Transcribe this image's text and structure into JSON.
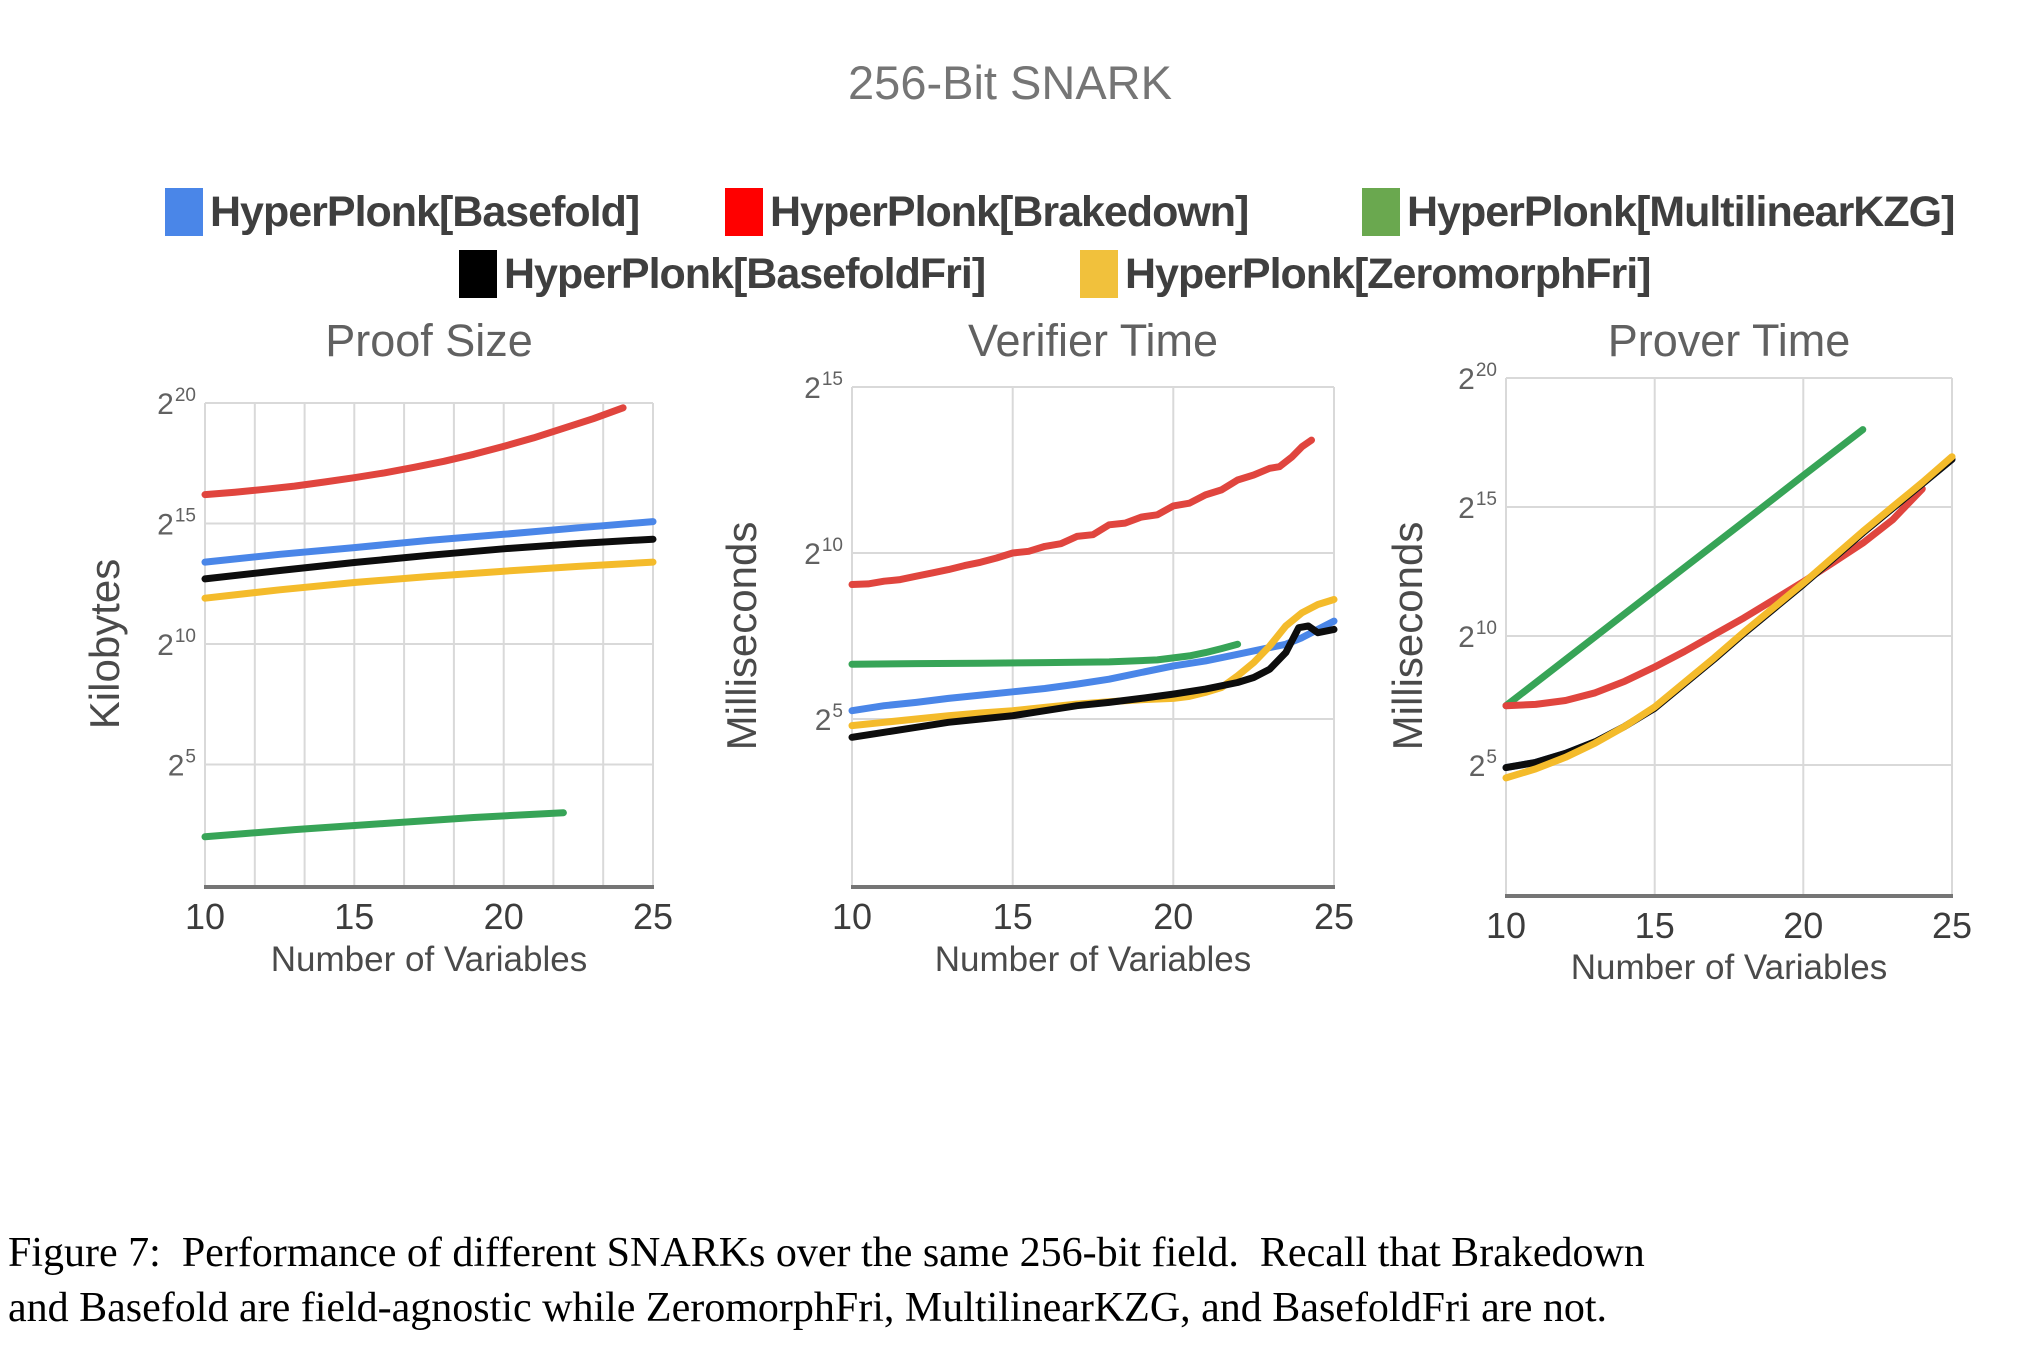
{
  "figure_title": "256-Bit SNARK",
  "legend": {
    "items": [
      {
        "label": "HyperPlonk[Basefold]",
        "swatch_color": "#4a86e8"
      },
      {
        "label": "HyperPlonk[Brakedown]",
        "swatch_color": "#ff0000"
      },
      {
        "label": "HyperPlonk[MultilinearKZG]",
        "swatch_color": "#6aa84f"
      },
      {
        "label": "HyperPlonk[BasefoldFri]",
        "swatch_color": "#000000"
      },
      {
        "label": "HyperPlonk[ZeromorphFri]",
        "swatch_color": "#f1c13c"
      }
    ]
  },
  "chart_style": {
    "grid_color": "#d9d9d9",
    "axis_color": "#757575",
    "tick_color": "#616161",
    "xtick_color": "#3c3c3c"
  },
  "chart_data": [
    {
      "type": "line",
      "title": "Proof Size",
      "xlabel": "Number of Variables",
      "ylabel": "Kilobytes",
      "y_scale": "log2",
      "y_base": "2",
      "x_range": [
        10,
        25
      ],
      "x_ticks": [
        10,
        15,
        20,
        25
      ],
      "x_minor_divisions": 9,
      "y_range_log2": [
        0,
        20
      ],
      "y_ticks_log2": [
        5,
        10,
        15,
        20
      ],
      "series": [
        {
          "id": "basefold",
          "name": "HyperPlonk[Basefold]",
          "color": "#4a86e8",
          "points_log2": [
            [
              10,
              13.4
            ],
            [
              12.5,
              13.72
            ],
            [
              15,
              14.0
            ],
            [
              17.5,
              14.3
            ],
            [
              20,
              14.55
            ],
            [
              22.5,
              14.82
            ],
            [
              25,
              15.08
            ]
          ]
        },
        {
          "id": "brakedown",
          "name": "HyperPlonk[Brakedown]",
          "color": "#e0453e",
          "points_log2": [
            [
              10,
              16.2
            ],
            [
              11,
              16.3
            ],
            [
              12,
              16.42
            ],
            [
              13,
              16.55
            ],
            [
              14,
              16.72
            ],
            [
              15,
              16.9
            ],
            [
              16,
              17.1
            ],
            [
              17,
              17.33
            ],
            [
              18,
              17.58
            ],
            [
              19,
              17.87
            ],
            [
              20,
              18.2
            ],
            [
              21,
              18.55
            ],
            [
              22,
              18.95
            ],
            [
              23,
              19.35
            ],
            [
              24,
              19.8
            ]
          ]
        },
        {
          "id": "multilinear-kzg",
          "name": "HyperPlonk[MultilinearKZG]",
          "color": "#37a457",
          "points_log2": [
            [
              10,
              2.0
            ],
            [
              13,
              2.3
            ],
            [
              16,
              2.55
            ],
            [
              19,
              2.8
            ],
            [
              22,
              3.0
            ]
          ]
        },
        {
          "id": "basefold-fri",
          "name": "HyperPlonk[BasefoldFri]",
          "color": "#0d0d0d",
          "points_log2": [
            [
              10,
              12.7
            ],
            [
              12.5,
              13.05
            ],
            [
              15,
              13.38
            ],
            [
              17.5,
              13.68
            ],
            [
              20,
              13.95
            ],
            [
              22.5,
              14.17
            ],
            [
              25,
              14.35
            ]
          ]
        },
        {
          "id": "zeromorph-fri",
          "name": "HyperPlonk[ZeromorphFri]",
          "color": "#f4bb2b",
          "points_log2": [
            [
              10,
              11.9
            ],
            [
              12.5,
              12.25
            ],
            [
              15,
              12.55
            ],
            [
              17.5,
              12.8
            ],
            [
              20,
              13.02
            ],
            [
              22.5,
              13.22
            ],
            [
              25,
              13.4
            ]
          ]
        }
      ]
    },
    {
      "type": "line",
      "title": "Verifier Time",
      "xlabel": "Number of Variables",
      "ylabel": "Milliseconds",
      "y_scale": "log2",
      "y_base": "2",
      "x_range": [
        10,
        25
      ],
      "x_ticks": [
        10,
        15,
        20,
        25
      ],
      "x_minor_divisions": 0,
      "y_range_log2": [
        0,
        15
      ],
      "y_ticks_log2": [
        5,
        10,
        15
      ],
      "series": [
        {
          "id": "brakedown",
          "name": "HyperPlonk[Brakedown]",
          "color": "#e0453e",
          "points_log2": [
            [
              10,
              9.05
            ],
            [
              10.5,
              9.07
            ],
            [
              11,
              9.15
            ],
            [
              11.5,
              9.2
            ],
            [
              12,
              9.3
            ],
            [
              12.5,
              9.4
            ],
            [
              13,
              9.5
            ],
            [
              13.5,
              9.62
            ],
            [
              14,
              9.72
            ],
            [
              14.5,
              9.85
            ],
            [
              15,
              10.0
            ],
            [
              15.5,
              10.05
            ],
            [
              16,
              10.2
            ],
            [
              16.5,
              10.28
            ],
            [
              17,
              10.5
            ],
            [
              17.5,
              10.55
            ],
            [
              18,
              10.85
            ],
            [
              18.5,
              10.9
            ],
            [
              19,
              11.08
            ],
            [
              19.5,
              11.15
            ],
            [
              20,
              11.42
            ],
            [
              20.5,
              11.5
            ],
            [
              21,
              11.75
            ],
            [
              21.5,
              11.9
            ],
            [
              22,
              12.2
            ],
            [
              22.5,
              12.35
            ],
            [
              23,
              12.55
            ],
            [
              23.3,
              12.6
            ],
            [
              23.7,
              12.9
            ],
            [
              24,
              13.2
            ],
            [
              24.3,
              13.4
            ]
          ]
        },
        {
          "id": "multilinear-kzg",
          "name": "HyperPlonk[MultilinearKZG]",
          "color": "#37a457",
          "points_log2": [
            [
              10,
              6.65
            ],
            [
              12,
              6.67
            ],
            [
              14,
              6.68
            ],
            [
              16,
              6.7
            ],
            [
              18,
              6.72
            ],
            [
              19.5,
              6.78
            ],
            [
              20.5,
              6.9
            ],
            [
              21,
              7.0
            ],
            [
              21.5,
              7.12
            ],
            [
              22,
              7.25
            ]
          ]
        },
        {
          "id": "basefold",
          "name": "HyperPlonk[Basefold]",
          "color": "#4a86e8",
          "points_log2": [
            [
              10,
              5.25
            ],
            [
              11,
              5.4
            ],
            [
              12,
              5.5
            ],
            [
              13,
              5.62
            ],
            [
              14,
              5.72
            ],
            [
              15,
              5.82
            ],
            [
              16,
              5.92
            ],
            [
              17,
              6.05
            ],
            [
              18,
              6.2
            ],
            [
              19,
              6.4
            ],
            [
              20,
              6.6
            ],
            [
              21,
              6.75
            ],
            [
              22,
              6.95
            ],
            [
              23,
              7.15
            ],
            [
              23.5,
              7.25
            ],
            [
              24,
              7.45
            ],
            [
              24.5,
              7.7
            ],
            [
              25,
              7.95
            ]
          ]
        },
        {
          "id": "zeromorph-fri",
          "name": "HyperPlonk[ZeromorphFri]",
          "color": "#f4bb2b",
          "points_log2": [
            [
              10,
              4.8
            ],
            [
              11,
              4.9
            ],
            [
              12,
              5.0
            ],
            [
              13,
              5.1
            ],
            [
              14,
              5.18
            ],
            [
              15,
              5.25
            ],
            [
              16,
              5.35
            ],
            [
              17,
              5.45
            ],
            [
              18,
              5.52
            ],
            [
              19,
              5.58
            ],
            [
              20,
              5.62
            ],
            [
              20.5,
              5.68
            ],
            [
              21,
              5.8
            ],
            [
              21.5,
              5.95
            ],
            [
              22,
              6.3
            ],
            [
              22.5,
              6.7
            ],
            [
              23,
              7.2
            ],
            [
              23.5,
              7.8
            ],
            [
              24,
              8.2
            ],
            [
              24.5,
              8.45
            ],
            [
              25,
              8.6
            ]
          ]
        },
        {
          "id": "basefold-fri",
          "name": "HyperPlonk[BasefoldFri]",
          "color": "#0d0d0d",
          "points_log2": [
            [
              10,
              4.45
            ],
            [
              11,
              4.6
            ],
            [
              12,
              4.75
            ],
            [
              13,
              4.9
            ],
            [
              14,
              5.0
            ],
            [
              15,
              5.1
            ],
            [
              16,
              5.25
            ],
            [
              17,
              5.4
            ],
            [
              18,
              5.5
            ],
            [
              19,
              5.62
            ],
            [
              20,
              5.75
            ],
            [
              21,
              5.9
            ],
            [
              22,
              6.1
            ],
            [
              22.5,
              6.25
            ],
            [
              23,
              6.5
            ],
            [
              23.5,
              7.0
            ],
            [
              23.9,
              7.75
            ],
            [
              24.2,
              7.8
            ],
            [
              24.5,
              7.6
            ],
            [
              25,
              7.7
            ]
          ]
        }
      ]
    },
    {
      "type": "line",
      "title": "Prover Time",
      "xlabel": "Number of Variables",
      "ylabel": "Milliseconds",
      "y_scale": "log2",
      "y_base": "2",
      "x_range": [
        10,
        25
      ],
      "x_ticks": [
        10,
        15,
        20,
        25
      ],
      "x_minor_divisions": 0,
      "y_range_log2": [
        0,
        20
      ],
      "y_ticks_log2": [
        5,
        10,
        15,
        20
      ],
      "series": [
        {
          "id": "multilinear-kzg",
          "name": "HyperPlonk[MultilinearKZG]",
          "color": "#37a457",
          "points_log2": [
            [
              10,
              7.3
            ],
            [
              12,
              9.08
            ],
            [
              14,
              10.87
            ],
            [
              16,
              12.65
            ],
            [
              18,
              14.43
            ],
            [
              20,
              16.22
            ],
            [
              22,
              18.0
            ]
          ]
        },
        {
          "id": "brakedown",
          "name": "HyperPlonk[Brakedown]",
          "color": "#e0453e",
          "points_log2": [
            [
              10,
              7.3
            ],
            [
              11,
              7.35
            ],
            [
              12,
              7.5
            ],
            [
              13,
              7.8
            ],
            [
              14,
              8.25
            ],
            [
              15,
              8.8
            ],
            [
              16,
              9.4
            ],
            [
              17,
              10.05
            ],
            [
              18,
              10.7
            ],
            [
              19,
              11.4
            ],
            [
              20,
              12.1
            ],
            [
              21,
              12.85
            ],
            [
              22,
              13.6
            ],
            [
              23,
              14.5
            ],
            [
              24,
              15.7
            ]
          ]
        },
        {
          "id": "basefold",
          "name": "HyperPlonk[Basefold]",
          "color": "#4a86e8",
          "points_log2": [
            [
              10,
              4.9
            ],
            [
              11,
              5.1
            ],
            [
              12,
              5.45
            ],
            [
              13,
              5.9
            ],
            [
              14,
              6.5
            ],
            [
              15,
              7.2
            ],
            [
              16,
              8.15
            ],
            [
              17,
              9.1
            ],
            [
              18,
              10.1
            ],
            [
              19,
              11.05
            ],
            [
              20,
              12.0
            ],
            [
              21,
              13.0
            ],
            [
              22,
              14.0
            ],
            [
              23,
              14.95
            ],
            [
              24,
              15.9
            ],
            [
              25,
              16.85
            ]
          ]
        },
        {
          "id": "basefold-fri",
          "name": "HyperPlonk[BasefoldFri]",
          "color": "#0d0d0d",
          "points_log2": [
            [
              10,
              4.9
            ],
            [
              11,
              5.1
            ],
            [
              12,
              5.45
            ],
            [
              13,
              5.9
            ],
            [
              14,
              6.5
            ],
            [
              15,
              7.2
            ],
            [
              16,
              8.15
            ],
            [
              17,
              9.1
            ],
            [
              18,
              10.1
            ],
            [
              19,
              11.05
            ],
            [
              20,
              12.0
            ],
            [
              21,
              13.0
            ],
            [
              22,
              14.0
            ],
            [
              23,
              14.95
            ],
            [
              24,
              15.9
            ],
            [
              25,
              16.85
            ]
          ]
        },
        {
          "id": "zeromorph-fri",
          "name": "HyperPlonk[ZeromorphFri]",
          "color": "#f4bb2b",
          "points_log2": [
            [
              10,
              4.5
            ],
            [
              11,
              4.85
            ],
            [
              12,
              5.3
            ],
            [
              13,
              5.85
            ],
            [
              14,
              6.5
            ],
            [
              15,
              7.25
            ],
            [
              16,
              8.2
            ],
            [
              17,
              9.15
            ],
            [
              18,
              10.15
            ],
            [
              19,
              11.1
            ],
            [
              20,
              12.05
            ],
            [
              21,
              13.05
            ],
            [
              22,
              14.05
            ],
            [
              23,
              15.0
            ],
            [
              24,
              15.95
            ],
            [
              25,
              16.95
            ]
          ]
        }
      ]
    }
  ],
  "caption": {
    "lines": [
      "Figure 7:  Performance of different SNARKs over the same 256-bit field.  Recall that Brakedown",
      "and Basefold are field-agnostic while ZeromorphFri, MultilinearKZG, and BasefoldFri are not."
    ]
  }
}
